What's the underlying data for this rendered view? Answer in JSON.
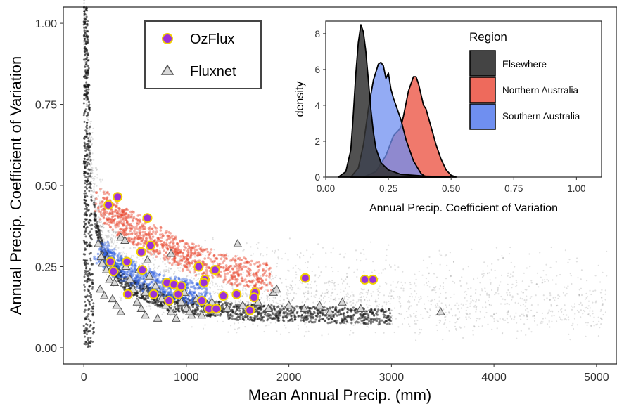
{
  "chart_data": [
    {
      "type": "scatter",
      "title": "",
      "xlabel": "Mean Annual Precip. (mm)",
      "ylabel": "Annual Precip. Coefficient of Variation",
      "xlim": [
        -200,
        5200
      ],
      "ylim": [
        -0.05,
        1.05
      ],
      "xticks": [
        0,
        1000,
        2000,
        3000,
        4000,
        5000
      ],
      "yticks": [
        0.0,
        0.25,
        0.5,
        0.75,
        1.0
      ],
      "xtick_labels": [
        "0",
        "1000",
        "2000",
        "3000",
        "4000",
        "5000"
      ],
      "ytick_labels": [
        "0.00",
        "0.25",
        "0.50",
        "0.75",
        "1.00"
      ],
      "grid": false,
      "legend_position": "top-left",
      "colors": {
        "OzFlux": "#9b30d9",
        "OzFlux_edge": "#f2d100",
        "Fluxnet": "#d9d9d9",
        "Fluxnet_edge": "#555555",
        "Elsewhere": "#222222",
        "Northern Australia": "#e8472f",
        "Southern Australia": "#2f5fe0"
      },
      "series": [
        {
          "name": "OzFlux",
          "marker": "circle",
          "points": [
            [
              240,
              0.44
            ],
            [
              330,
              0.465
            ],
            [
              620,
              0.4
            ],
            [
              560,
              0.295
            ],
            [
              650,
              0.315
            ],
            [
              260,
              0.265
            ],
            [
              420,
              0.265
            ],
            [
              570,
              0.24
            ],
            [
              290,
              0.235
            ],
            [
              1120,
              0.25
            ],
            [
              1280,
              0.24
            ],
            [
              1180,
              0.21
            ],
            [
              1170,
              0.2
            ],
            [
              810,
              0.2
            ],
            [
              880,
              0.195
            ],
            [
              950,
              0.19
            ],
            [
              680,
              0.165
            ],
            [
              430,
              0.165
            ],
            [
              830,
              0.145
            ],
            [
              920,
              0.165
            ],
            [
              1360,
              0.16
            ],
            [
              1490,
              0.165
            ],
            [
              1670,
              0.17
            ],
            [
              1660,
              0.155
            ],
            [
              1150,
              0.145
            ],
            [
              1220,
              0.12
            ],
            [
              1290,
              0.12
            ],
            [
              1620,
              0.115
            ],
            [
              2160,
              0.215
            ],
            [
              2740,
              0.21
            ],
            [
              2820,
              0.21
            ]
          ]
        },
        {
          "name": "Fluxnet",
          "marker": "triangle",
          "points": [
            [
              140,
              0.32
            ],
            [
              170,
              0.28
            ],
            [
              180,
              0.26
            ],
            [
              220,
              0.24
            ],
            [
              250,
              0.21
            ],
            [
              160,
              0.18
            ],
            [
              200,
              0.16
            ],
            [
              280,
              0.15
            ],
            [
              320,
              0.13
            ],
            [
              360,
              0.11
            ],
            [
              410,
              0.25
            ],
            [
              450,
              0.21
            ],
            [
              480,
              0.18
            ],
            [
              520,
              0.14
            ],
            [
              560,
              0.12
            ],
            [
              600,
              0.1
            ],
            [
              640,
              0.22
            ],
            [
              700,
              0.19
            ],
            [
              760,
              0.15
            ],
            [
              800,
              0.13
            ],
            [
              850,
              0.11
            ],
            [
              900,
              0.09
            ],
            [
              950,
              0.14
            ],
            [
              1000,
              0.12
            ],
            [
              1050,
              0.1
            ],
            [
              1100,
              0.15
            ],
            [
              1200,
              0.13
            ],
            [
              1300,
              0.11
            ],
            [
              1400,
              0.12
            ],
            [
              1550,
              0.13
            ],
            [
              1700,
              0.14
            ],
            [
              1850,
              0.17
            ],
            [
              2000,
              0.13
            ],
            [
              2150,
              0.12
            ],
            [
              2400,
              0.11
            ],
            [
              2700,
              0.12
            ],
            [
              3480,
              0.11
            ],
            [
              1500,
              0.32
            ],
            [
              360,
              0.34
            ],
            [
              400,
              0.33
            ],
            [
              850,
              0.29
            ],
            [
              620,
              0.27
            ],
            [
              540,
              0.24
            ],
            [
              300,
              0.2
            ],
            [
              720,
              0.09
            ],
            [
              980,
              0.17
            ],
            [
              1250,
              0.14
            ],
            [
              1650,
              0.12
            ],
            [
              1800,
              0.12
            ],
            [
              2300,
              0.13
            ],
            [
              1880,
              0.18
            ],
            [
              2520,
              0.14
            ],
            [
              1030,
              0.11
            ],
            [
              1150,
              0.1
            ],
            [
              600,
              0.17
            ]
          ]
        }
      ],
      "background_density": [
        {
          "name": "Elsewhere",
          "description_points": [
            [
              0,
              1.0
            ],
            [
              10,
              0.9
            ],
            [
              20,
              0.8
            ],
            [
              30,
              0.7
            ],
            [
              50,
              0.6
            ],
            [
              80,
              0.5
            ],
            [
              120,
              0.4
            ],
            [
              200,
              0.3
            ],
            [
              400,
              0.22
            ],
            [
              800,
              0.16
            ],
            [
              1500,
              0.13
            ],
            [
              2500,
              0.12
            ],
            [
              3500,
              0.11
            ],
            [
              4500,
              0.11
            ],
            [
              5200,
              0.11
            ]
          ]
        },
        {
          "name": "Northern Australia",
          "description_points": [
            [
              150,
              0.45
            ],
            [
              400,
              0.38
            ],
            [
              700,
              0.33
            ],
            [
              1000,
              0.28
            ],
            [
              1400,
              0.24
            ],
            [
              1800,
              0.22
            ]
          ]
        },
        {
          "name": "Southern Australia",
          "description_points": [
            [
              150,
              0.3
            ],
            [
              350,
              0.25
            ],
            [
              600,
              0.21
            ],
            [
              900,
              0.18
            ],
            [
              1200,
              0.16
            ]
          ]
        }
      ],
      "legend": [
        "OzFlux",
        "Fluxnet"
      ]
    },
    {
      "type": "area",
      "title": "",
      "xlabel": "Annual Precip. Coefficient of Variation",
      "ylabel": "density",
      "xlim": [
        0.0,
        1.1
      ],
      "ylim": [
        0,
        8.7
      ],
      "xticks": [
        0.0,
        0.25,
        0.5,
        0.75,
        1.0
      ],
      "yticks": [
        0,
        2,
        4,
        6,
        8
      ],
      "xtick_labels": [
        "0.00",
        "0.25",
        "0.50",
        "0.75",
        "1.00"
      ],
      "ytick_labels": [
        "0",
        "2",
        "4",
        "6",
        "8"
      ],
      "legend_title": "Region",
      "legend_position": "top-right",
      "series": [
        {
          "name": "Elsewhere",
          "color": "#333333",
          "x": [
            0.05,
            0.08,
            0.1,
            0.11,
            0.12,
            0.13,
            0.14,
            0.15,
            0.16,
            0.17,
            0.18,
            0.19,
            0.2,
            0.22,
            0.25,
            0.3,
            0.4,
            0.5
          ],
          "y": [
            0.0,
            0.3,
            1.5,
            3.5,
            5.8,
            7.5,
            8.5,
            8.1,
            7.0,
            5.4,
            3.8,
            2.5,
            1.6,
            0.8,
            0.4,
            0.15,
            0.05,
            0.0
          ]
        },
        {
          "name": "Northern Australia",
          "color": "#ee6a5c",
          "x": [
            0.15,
            0.2,
            0.24,
            0.27,
            0.29,
            0.3,
            0.31,
            0.33,
            0.35,
            0.36,
            0.37,
            0.39,
            0.4,
            0.42,
            0.44,
            0.46,
            0.48,
            0.5,
            0.52
          ],
          "y": [
            0.0,
            0.3,
            1.2,
            2.3,
            2.6,
            2.8,
            3.4,
            4.8,
            5.6,
            5.6,
            5.2,
            4.0,
            3.8,
            2.8,
            1.8,
            1.0,
            0.4,
            0.1,
            0.0
          ]
        },
        {
          "name": "Southern Australia",
          "color": "#6f8ff0",
          "x": [
            0.1,
            0.13,
            0.15,
            0.17,
            0.19,
            0.21,
            0.22,
            0.23,
            0.24,
            0.25,
            0.26,
            0.27,
            0.28,
            0.3,
            0.32,
            0.35,
            0.38,
            0.4
          ],
          "y": [
            0.0,
            0.5,
            1.8,
            3.8,
            5.4,
            6.3,
            6.4,
            6.2,
            5.5,
            5.8,
            4.9,
            4.4,
            4.0,
            3.2,
            2.1,
            0.9,
            0.2,
            0.0
          ]
        }
      ]
    }
  ]
}
